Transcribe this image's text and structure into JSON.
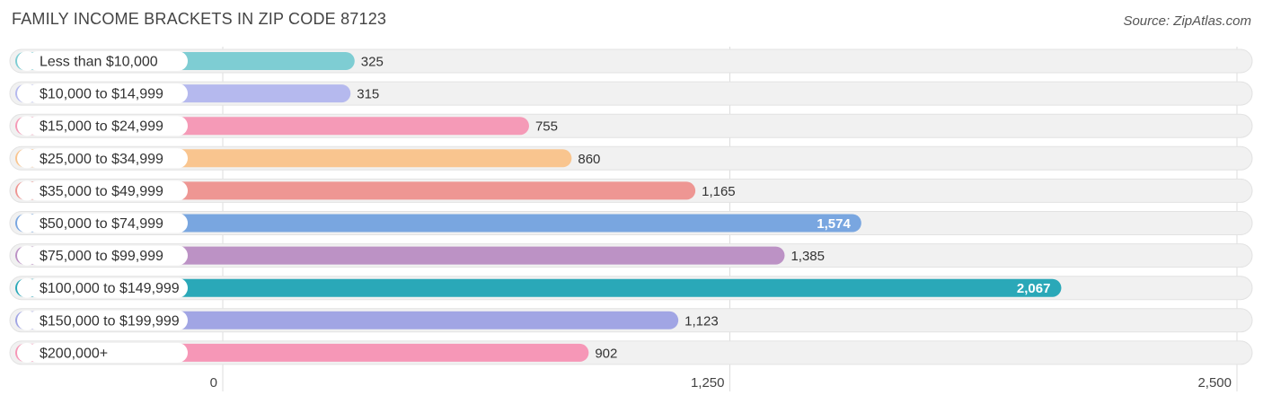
{
  "header": {
    "title": "FAMILY INCOME BRACKETS IN ZIP CODE 87123",
    "source": "Source: ZipAtlas.com"
  },
  "chart_data": {
    "type": "bar",
    "orientation": "horizontal",
    "title": "FAMILY INCOME BRACKETS IN ZIP CODE 87123",
    "categories": [
      "Less than $10,000",
      "$10,000 to $14,999",
      "$15,000 to $24,999",
      "$25,000 to $34,999",
      "$35,000 to $49,999",
      "$50,000 to $74,999",
      "$75,000 to $99,999",
      "$100,000 to $149,999",
      "$150,000 to $199,999",
      "$200,000+"
    ],
    "values": [
      325,
      315,
      755,
      860,
      1165,
      1574,
      1385,
      2067,
      1123,
      902
    ],
    "value_labels": [
      "325",
      "315",
      "755",
      "860",
      "1,165",
      "1,574",
      "1,385",
      "2,067",
      "1,123",
      "902"
    ],
    "colors": [
      "#7ecdd3",
      "#b5b9ee",
      "#f59ab7",
      "#f9c58f",
      "#ee9693",
      "#79a6e0",
      "#bc92c5",
      "#2aa8b8",
      "#a1a5e4",
      "#f697b7"
    ],
    "xlim": [
      0,
      2500
    ],
    "ticks": [
      0,
      1250,
      2500
    ],
    "tick_labels": [
      "0",
      "1,250",
      "2,500"
    ],
    "grid": true,
    "legend": "none"
  }
}
